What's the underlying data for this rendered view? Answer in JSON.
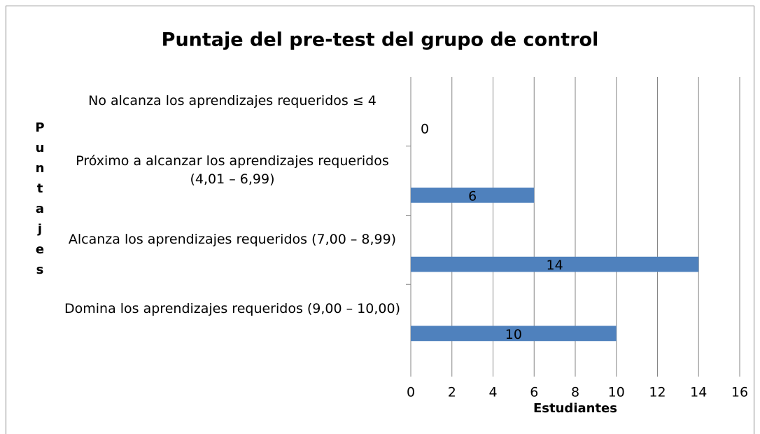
{
  "chart_data": {
    "type": "bar",
    "orientation": "horizontal",
    "title": "Puntaje del pre-test del grupo de control",
    "x_label": "Estudiantes",
    "y_label": "Puntajes",
    "categories": [
      "No alcanza los aprendizajes requeridos  ≤ 4",
      "Próximo a alcanzar los aprendizajes requeridos (4,01 – 6,99)",
      "Alcanza los aprendizajes requeridos (7,00 – 8,99)",
      "Domina los aprendizajes requeridos  (9,00 – 10,00)"
    ],
    "values": [
      0,
      6,
      14,
      10
    ],
    "color": "#4f81bd",
    "xlim": [
      0,
      16
    ],
    "xticks": [
      0,
      2,
      4,
      6,
      8,
      10,
      12,
      14,
      16
    ],
    "grid": true
  }
}
